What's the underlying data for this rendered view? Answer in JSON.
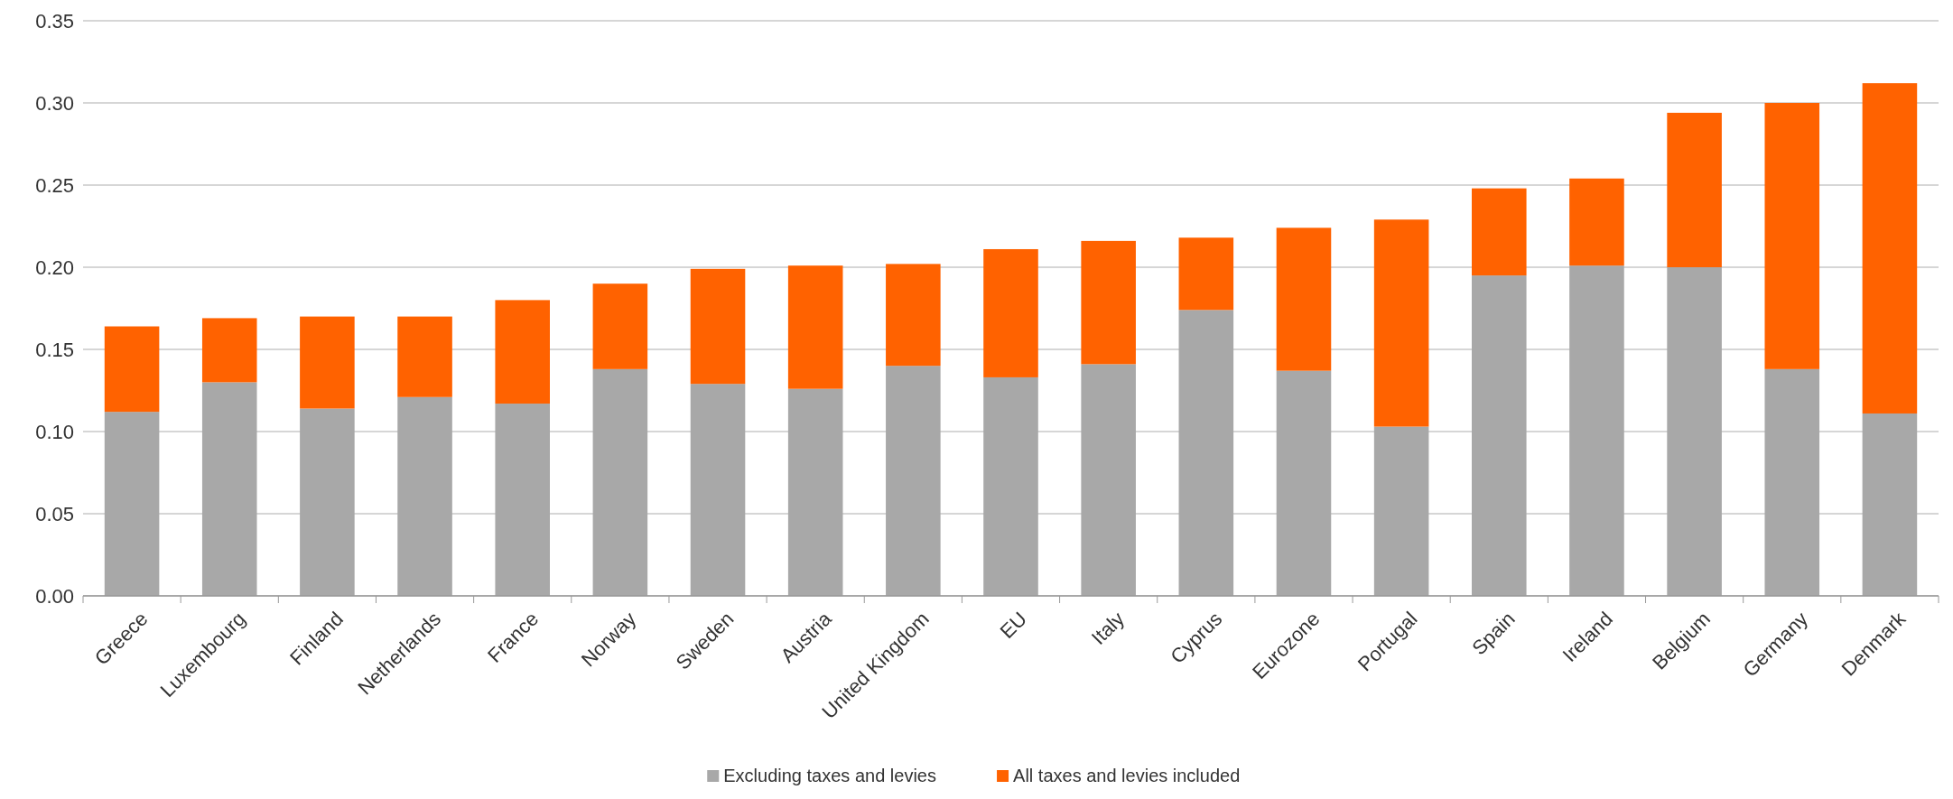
{
  "chart_data": {
    "type": "bar",
    "stacked": true,
    "categories": [
      "Greece",
      "Luxembourg",
      "Finland",
      "Netherlands",
      "France",
      "Norway",
      "Sweden",
      "Austria",
      "United Kingdom",
      "EU",
      "Italy",
      "Cyprus",
      "Eurozone",
      "Portugal",
      "Spain",
      "Ireland",
      "Belgium",
      "Germany",
      "Denmark"
    ],
    "series": [
      {
        "name": "Excluding taxes and levies",
        "color": "#a8a8a8",
        "values": [
          0.112,
          0.13,
          0.114,
          0.121,
          0.117,
          0.138,
          0.129,
          0.126,
          0.14,
          0.133,
          0.141,
          0.174,
          0.137,
          0.103,
          0.195,
          0.201,
          0.2,
          0.138,
          0.111
        ]
      },
      {
        "name": "All taxes and levies included",
        "color": "#ff6200",
        "values": [
          0.052,
          0.039,
          0.056,
          0.049,
          0.063,
          0.052,
          0.07,
          0.075,
          0.062,
          0.078,
          0.075,
          0.044,
          0.087,
          0.126,
          0.053,
          0.053,
          0.094,
          0.162,
          0.201
        ]
      }
    ],
    "ylim": [
      0,
      0.35
    ],
    "yticks": [
      {
        "value": 0,
        "label": "0.00"
      },
      {
        "value": 0.05,
        "label": "0.05"
      },
      {
        "value": 0.1,
        "label": "0.10"
      },
      {
        "value": 0.15,
        "label": "0.15"
      },
      {
        "value": 0.2,
        "label": "0.20"
      },
      {
        "value": 0.25,
        "label": "0.25"
      },
      {
        "value": 0.3,
        "label": "0.30"
      },
      {
        "value": 0.35,
        "label": "0.35"
      }
    ],
    "grid": "y",
    "legend": "bottom"
  }
}
